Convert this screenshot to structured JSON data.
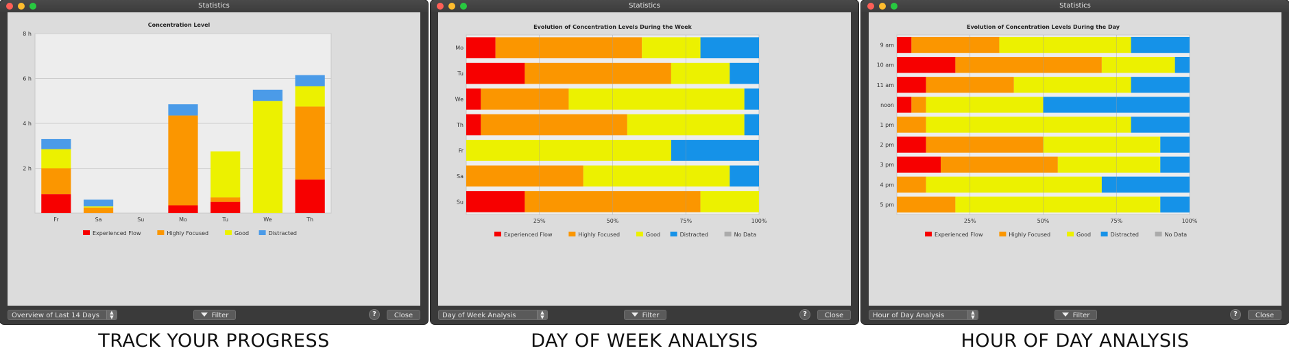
{
  "colors": {
    "experienced_flow": "#f70000",
    "highly_focused": "#fb9600",
    "good": "#ecf100",
    "distracted_blue_progress": "#4b9be8",
    "distracted_blue": "#1592e8",
    "no_data": "#ababab"
  },
  "windows": [
    {
      "title": "Statistics",
      "select_label": "Overview of Last 14 Days",
      "filter_label": "Filter",
      "help_label": "?",
      "close_label": "Close",
      "caption": "TRACK YOUR PROGRESS"
    },
    {
      "title": "Statistics",
      "select_label": "Day of Week Analysis",
      "filter_label": "Filter",
      "help_label": "?",
      "close_label": "Close",
      "caption": "DAY OF WEEK ANALYSIS"
    },
    {
      "title": "Statistics",
      "select_label": "Hour of Day Analysis",
      "filter_label": "Filter",
      "help_label": "?",
      "close_label": "Close",
      "caption": "HOUR OF DAY ANALYSIS"
    }
  ],
  "chart_data": [
    {
      "type": "bar",
      "stacked": true,
      "title": "Concentration Level",
      "categories": [
        "Fr",
        "Sa",
        "Su",
        "Mo",
        "Tu",
        "We",
        "Th"
      ],
      "ylim": [
        0,
        8
      ],
      "yticks": [
        2,
        4,
        6,
        8
      ],
      "ytick_labels": [
        "2 h",
        "4 h",
        "6 h",
        "8 h"
      ],
      "grid": true,
      "legend_position": "bottom",
      "series": [
        {
          "name": "Experienced Flow",
          "values": [
            0.85,
            0,
            0,
            0.35,
            0.5,
            0,
            1.5
          ]
        },
        {
          "name": "Highly Focused",
          "values": [
            1.15,
            0.25,
            0,
            4.0,
            0.2,
            0,
            3.25
          ]
        },
        {
          "name": "Good",
          "values": [
            0.85,
            0.05,
            0,
            0,
            2.05,
            5.0,
            0.9
          ]
        },
        {
          "name": "Distracted",
          "values": [
            0.45,
            0.3,
            0,
            0.5,
            0,
            0.5,
            0.5
          ]
        }
      ]
    },
    {
      "type": "bar",
      "orientation": "horizontal",
      "stacked": true,
      "percent": true,
      "title": "Evolution of Concentration Levels During the Week",
      "categories": [
        "Mo",
        "Tu",
        "We",
        "Th",
        "Fr",
        "Sa",
        "Su"
      ],
      "xlim": [
        0,
        100
      ],
      "xticks": [
        25,
        50,
        75,
        100
      ],
      "xtick_labels": [
        "25%",
        "50%",
        "75%",
        "100%"
      ],
      "grid": true,
      "legend_position": "bottom",
      "series": [
        {
          "name": "Experienced Flow",
          "values": [
            10,
            20,
            5,
            5,
            0,
            0,
            20
          ]
        },
        {
          "name": "Highly Focused",
          "values": [
            50,
            50,
            30,
            50,
            0,
            40,
            60
          ]
        },
        {
          "name": "Good",
          "values": [
            20,
            20,
            60,
            40,
            70,
            50,
            20
          ]
        },
        {
          "name": "Distracted",
          "values": [
            20,
            10,
            5,
            5,
            30,
            10,
            0
          ]
        },
        {
          "name": "No Data",
          "values": [
            0,
            0,
            0,
            0,
            0,
            0,
            0
          ]
        }
      ]
    },
    {
      "type": "bar",
      "orientation": "horizontal",
      "stacked": true,
      "percent": true,
      "title": "Evolution of Concentration Levels During the Day",
      "categories": [
        "9 am",
        "10 am",
        "11 am",
        "noon",
        "1 pm",
        "2 pm",
        "3 pm",
        "4 pm",
        "5 pm"
      ],
      "xlim": [
        0,
        100
      ],
      "xticks": [
        25,
        50,
        75,
        100
      ],
      "xtick_labels": [
        "25%",
        "50%",
        "75%",
        "100%"
      ],
      "grid": true,
      "legend_position": "bottom",
      "series": [
        {
          "name": "Experienced Flow",
          "values": [
            5,
            20,
            10,
            5,
            0,
            10,
            15,
            0,
            0
          ]
        },
        {
          "name": "Highly Focused",
          "values": [
            30,
            50,
            30,
            5,
            10,
            40,
            40,
            10,
            20
          ]
        },
        {
          "name": "Good",
          "values": [
            45,
            25,
            40,
            40,
            70,
            40,
            35,
            60,
            70
          ]
        },
        {
          "name": "Distracted",
          "values": [
            20,
            5,
            20,
            50,
            20,
            10,
            10,
            30,
            10
          ]
        },
        {
          "name": "No Data",
          "values": [
            0,
            0,
            0,
            0,
            0,
            0,
            0,
            0,
            0
          ]
        }
      ]
    }
  ]
}
